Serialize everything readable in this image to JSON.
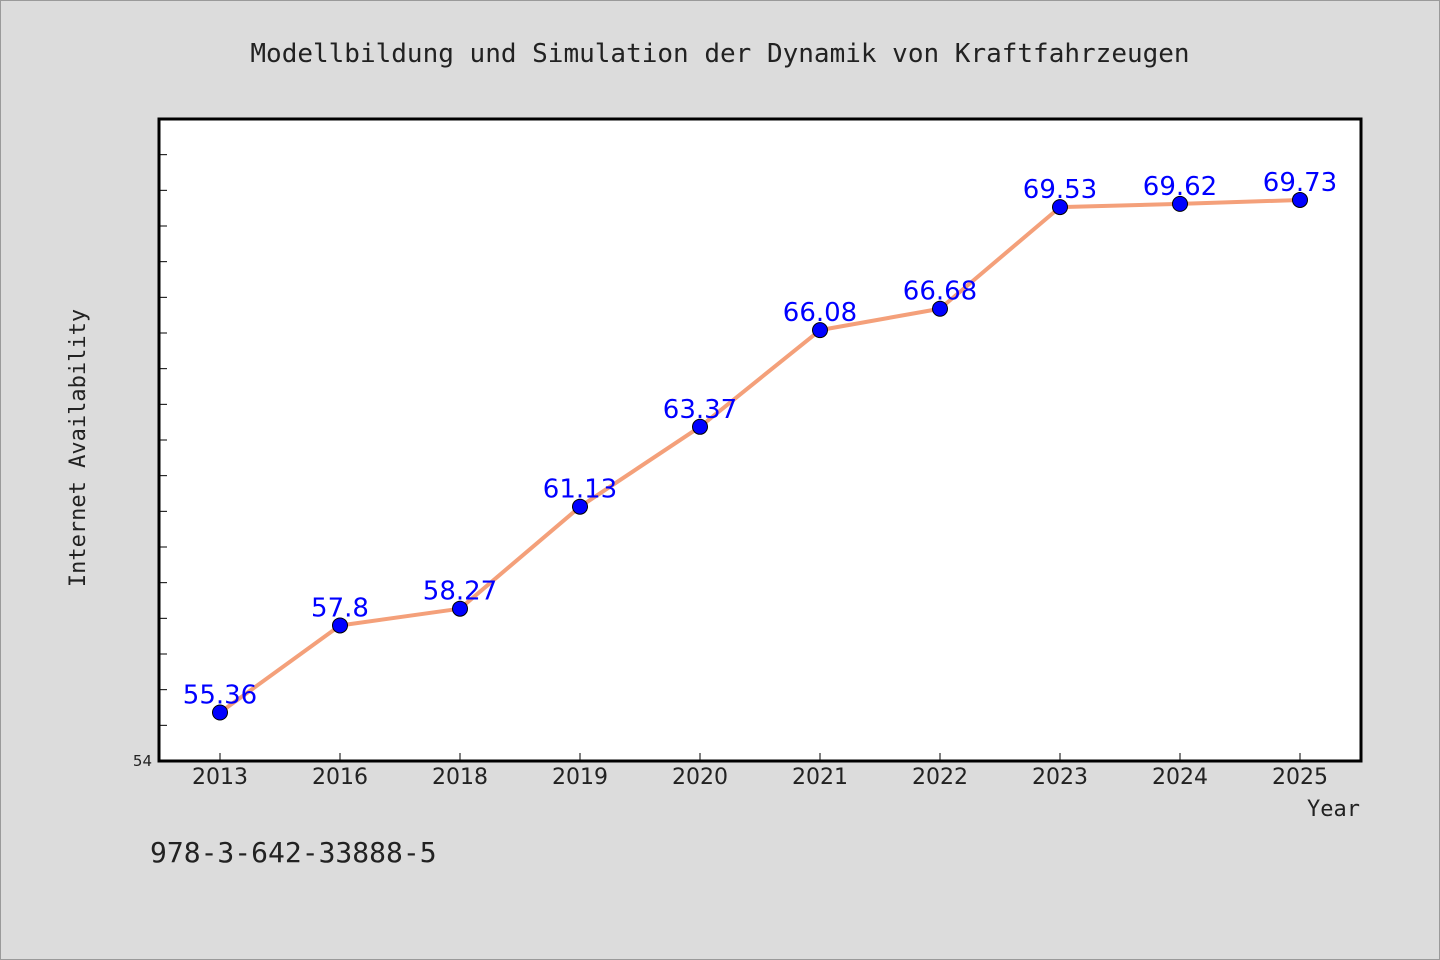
{
  "chart_data": {
    "type": "line",
    "title": "Modellbildung und Simulation der Dynamik von Kraftfahrzeugen",
    "xlabel": "Year",
    "ylabel": "Internet Availability",
    "categories": [
      "2013",
      "2016",
      "2018",
      "2019",
      "2020",
      "2021",
      "2022",
      "2023",
      "2024",
      "2025"
    ],
    "series": [
      {
        "values": [
          55.36,
          57.8,
          58.27,
          61.13,
          63.37,
          66.08,
          66.68,
          69.53,
          69.62,
          69.73
        ],
        "labels": [
          "55.36",
          "57.8",
          "58.27",
          "61.13",
          "63.37",
          "66.08",
          "66.68",
          "69.53",
          "69.62",
          "69.73"
        ]
      }
    ],
    "ylim": [
      54,
      72
    ],
    "y_tick_label": "54",
    "grid": false,
    "legend": "none",
    "colors": {
      "line": "#f4a07a",
      "marker": "#0000ff",
      "label": "#0000ff",
      "plot_bg": "#ffffff",
      "page_bg": "#dcdcdc"
    }
  },
  "footer_text": "978-3-642-33888-5"
}
